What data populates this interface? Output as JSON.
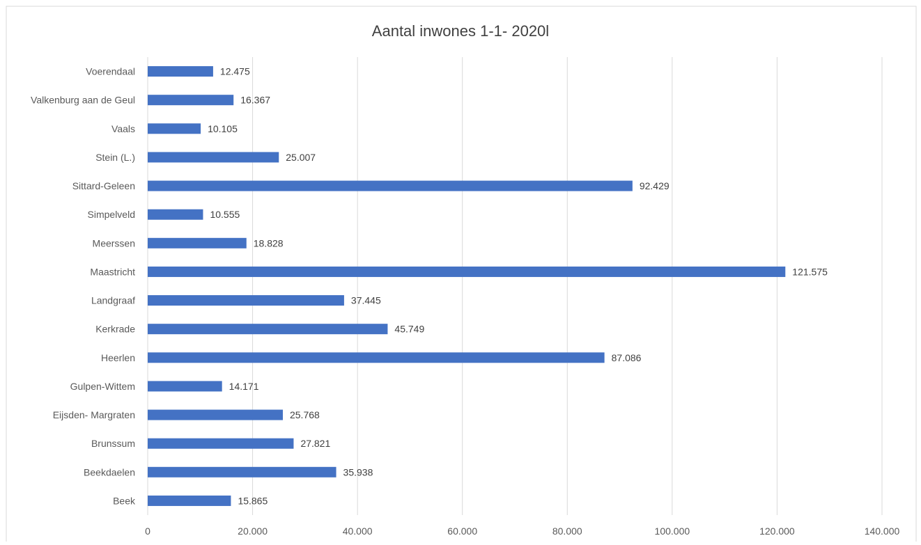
{
  "chart_data": {
    "type": "bar",
    "orientation": "horizontal",
    "title": "Aantal inwones 1-1- 2020l",
    "categories": [
      "Voerendaal",
      "Valkenburg aan de Geul",
      "Vaals",
      "Stein (L.)",
      "Sittard-Geleen",
      "Simpelveld",
      "Meerssen",
      "Maastricht",
      "Landgraaf",
      "Kerkrade",
      "Heerlen",
      "Gulpen-Wittem",
      "Eijsden- Margraten",
      "Brunssum",
      "Beekdaelen",
      "Beek"
    ],
    "values": [
      12475,
      16367,
      10105,
      25007,
      92429,
      10555,
      18828,
      121575,
      37445,
      45749,
      87086,
      14171,
      25768,
      27821,
      35938,
      15865
    ],
    "data_labels": [
      "12.475",
      "16.367",
      "10.105",
      "25.007",
      "92.429",
      "10.555",
      "18.828",
      "121.575",
      "37.445",
      "45.749",
      "87.086",
      "14.171",
      "25.768",
      "27.821",
      "35.938",
      "15.865"
    ],
    "xlim": [
      0,
      140000
    ],
    "x_ticks": [
      0,
      20000,
      40000,
      60000,
      80000,
      100000,
      120000,
      140000
    ],
    "x_tick_labels": [
      "0",
      "20.000",
      "40.000",
      "60.000",
      "80.000",
      "100.000",
      "120.000",
      "140.000"
    ],
    "xlabel": "",
    "ylabel": "",
    "grid": "vertical",
    "legend": "none",
    "bar_color": "#4472C4"
  }
}
